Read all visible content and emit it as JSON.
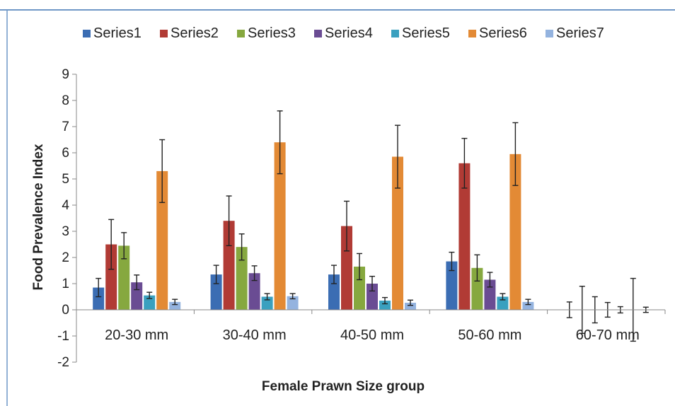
{
  "chart_data": {
    "type": "bar",
    "title": "",
    "xlabel": "Female Prawn Size group",
    "ylabel": "Food Prevalence Index",
    "ylim": [
      -2,
      9
    ],
    "yticks": [
      -2,
      -1,
      0,
      1,
      2,
      3,
      4,
      5,
      6,
      7,
      8,
      9
    ],
    "grid": false,
    "legend_position": "top",
    "categories": [
      "20-30 mm",
      "30-40 mm",
      "40-50 mm",
      "50-60 mm",
      "60-70 mm"
    ],
    "series": [
      {
        "name": "Series1",
        "color": "#3b6db3",
        "values": [
          0.85,
          1.35,
          1.35,
          1.85,
          0.0
        ],
        "errors": [
          0.35,
          0.35,
          0.35,
          0.35,
          0.3
        ]
      },
      {
        "name": "Series2",
        "color": "#b13b35",
        "values": [
          2.5,
          3.4,
          3.2,
          5.6,
          0.0
        ],
        "errors": [
          0.95,
          0.95,
          0.95,
          0.95,
          0.9
        ]
      },
      {
        "name": "Series3",
        "color": "#86a83f",
        "values": [
          2.45,
          2.4,
          1.65,
          1.6,
          0.0
        ],
        "errors": [
          0.5,
          0.5,
          0.5,
          0.5,
          0.5
        ]
      },
      {
        "name": "Series4",
        "color": "#6a4c93",
        "values": [
          1.05,
          1.4,
          1.0,
          1.15,
          0.0
        ],
        "errors": [
          0.28,
          0.28,
          0.28,
          0.28,
          0.28
        ]
      },
      {
        "name": "Series5",
        "color": "#3aa0bf",
        "values": [
          0.55,
          0.5,
          0.35,
          0.5,
          0.0
        ],
        "errors": [
          0.12,
          0.12,
          0.12,
          0.12,
          0.12
        ]
      },
      {
        "name": "Series6",
        "color": "#e38a35",
        "values": [
          5.3,
          6.4,
          5.85,
          5.95,
          0.0
        ],
        "errors": [
          1.2,
          1.2,
          1.2,
          1.2,
          1.2
        ]
      },
      {
        "name": "Series7",
        "color": "#94b3df",
        "values": [
          0.3,
          0.52,
          0.27,
          0.3,
          0.0
        ],
        "errors": [
          0.1,
          0.1,
          0.1,
          0.1,
          0.1
        ]
      }
    ]
  }
}
